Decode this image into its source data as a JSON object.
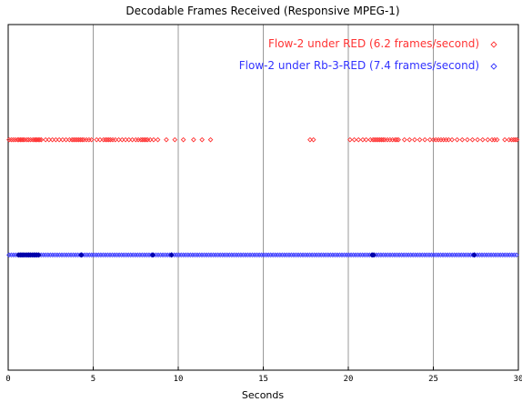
{
  "chart_data": {
    "type": "scatter",
    "title": "Decodable Frames Received (Responsive MPEG-1)",
    "xlabel": "Seconds",
    "ylabel": "",
    "xlim": [
      0,
      30
    ],
    "ylim": [
      0,
      3
    ],
    "x_ticks": [
      "0",
      "5",
      "10",
      "15",
      "20",
      "25",
      "30"
    ],
    "grid": "vertical lines at x ticks",
    "legend_position": "top-right",
    "marker": "diamond",
    "series": [
      {
        "name": "Flow-2 under RED (6.2 frames/second)",
        "color": "#ff3333",
        "y": 2,
        "x": [
          0.05,
          0.18,
          0.3,
          0.42,
          0.55,
          0.63,
          0.72,
          0.8,
          0.88,
          0.97,
          1.1,
          1.2,
          1.32,
          1.45,
          1.55,
          1.62,
          1.7,
          1.78,
          1.86,
          1.95,
          2.2,
          2.4,
          2.6,
          2.8,
          3.0,
          3.2,
          3.4,
          3.6,
          3.75,
          3.85,
          3.95,
          4.05,
          4.15,
          4.25,
          4.35,
          4.45,
          4.6,
          4.75,
          4.9,
          5.2,
          5.4,
          5.6,
          5.72,
          5.82,
          5.92,
          6.02,
          6.15,
          6.3,
          6.5,
          6.7,
          6.9,
          7.1,
          7.3,
          7.5,
          7.65,
          7.8,
          7.9,
          8.0,
          8.1,
          8.2,
          8.35,
          8.55,
          8.8,
          9.3,
          9.8,
          10.3,
          10.9,
          11.4,
          11.9,
          17.75,
          17.95,
          20.1,
          20.35,
          20.6,
          20.85,
          21.05,
          21.3,
          21.45,
          21.55,
          21.65,
          21.75,
          21.85,
          21.95,
          22.05,
          22.15,
          22.3,
          22.45,
          22.6,
          22.75,
          22.85,
          22.95,
          23.3,
          23.6,
          23.9,
          24.2,
          24.5,
          24.8,
          25.0,
          25.15,
          25.3,
          25.45,
          25.6,
          25.75,
          25.9,
          26.1,
          26.4,
          26.7,
          27.0,
          27.3,
          27.6,
          27.9,
          28.2,
          28.45,
          28.6,
          28.75,
          29.2,
          29.45,
          29.6,
          29.72,
          29.82,
          29.92
        ]
      },
      {
        "name": "Flow-2 under Rb-3-RED (7.4 frames/second)",
        "color": "#3333ff",
        "y": 1,
        "dense_from": 0.05,
        "dense_to": 29.95,
        "dense_step": 0.135,
        "heavy_x": [
          0.6,
          0.7,
          0.8,
          0.9,
          1.0,
          1.1,
          1.2,
          1.3,
          1.4,
          1.5,
          1.6,
          1.7,
          1.8,
          4.3,
          8.5,
          9.6,
          21.4,
          21.5,
          27.4
        ]
      }
    ]
  }
}
